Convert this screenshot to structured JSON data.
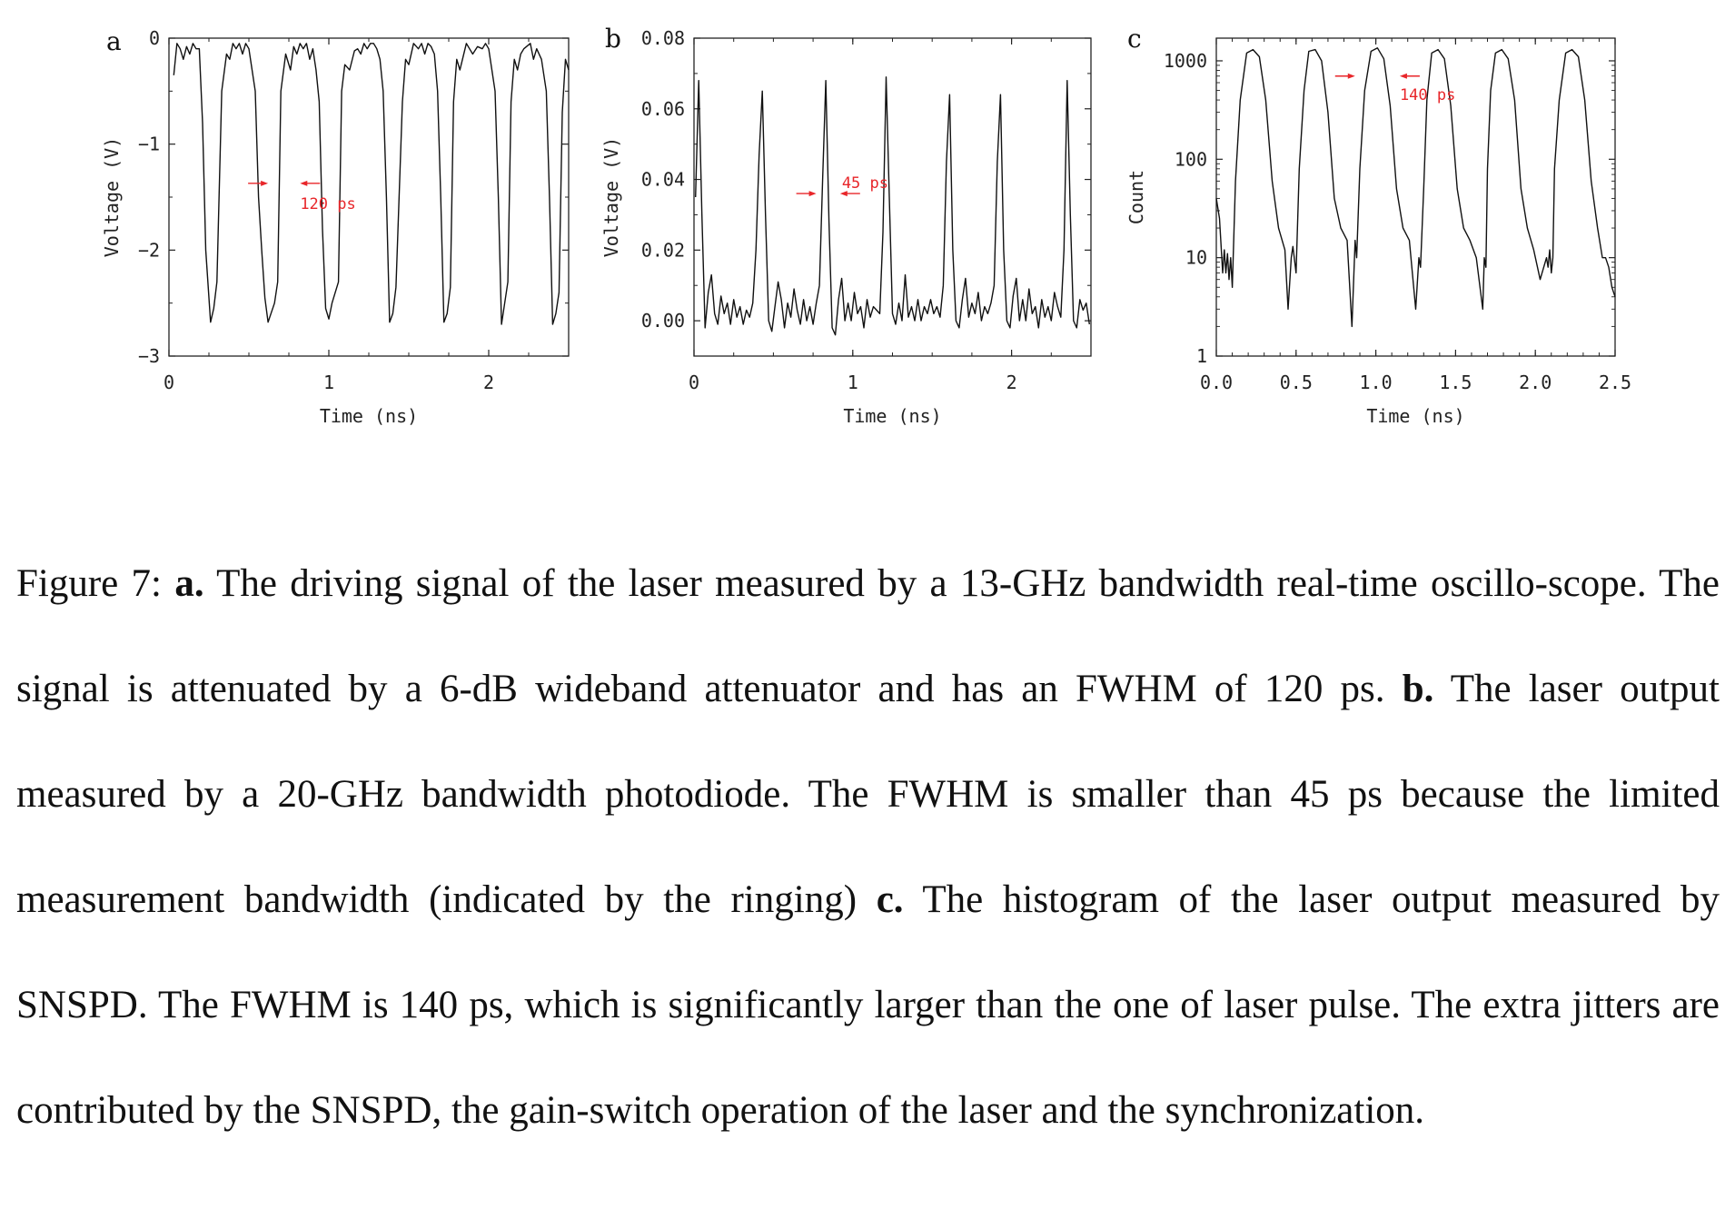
{
  "figure": {
    "panels": [
      {
        "letter": "a",
        "xlabel": "Time (ns)",
        "ylabel": "Voltage (V)",
        "annotation": "120 ps"
      },
      {
        "letter": "b",
        "xlabel": "Time (ns)",
        "ylabel": "Voltage (V)",
        "annotation": "45 ps"
      },
      {
        "letter": "c",
        "xlabel": "Time (ns)",
        "ylabel": "Count",
        "annotation": "140 ps"
      }
    ]
  },
  "chart_data": [
    {
      "type": "line",
      "panel": "a",
      "xlabel": "Time (ns)",
      "ylabel": "Voltage (V)",
      "xlim": [
        0,
        2.5
      ],
      "ylim": [
        -3,
        0
      ],
      "xticks": [
        0,
        1,
        2
      ],
      "xtick_labels": [
        "0",
        "1",
        "2"
      ],
      "yticks": [
        0,
        -1,
        -2,
        -3
      ],
      "ytick_labels": [
        "0",
        "−1",
        "−2",
        "−3"
      ],
      "annotation": {
        "text": "120 ps",
        "arrow_left_x": 0.62,
        "arrow_right_x": 0.82,
        "y": -1.37
      },
      "series": [
        {
          "x": [
            0.03,
            0.05,
            0.07,
            0.09,
            0.11,
            0.13,
            0.15,
            0.17,
            0.19,
            0.21,
            0.23,
            0.26,
            0.28,
            0.3,
            0.33,
            0.36,
            0.38,
            0.4,
            0.42,
            0.44,
            0.46,
            0.48,
            0.5,
            0.52,
            0.54,
            0.56,
            0.58,
            0.6,
            0.62,
            0.66,
            0.68,
            0.7,
            0.73,
            0.76,
            0.78,
            0.8,
            0.82,
            0.84,
            0.86,
            0.88,
            0.9,
            0.92,
            0.94,
            0.96,
            0.98,
            1.0,
            1.02,
            1.06,
            1.08,
            1.1,
            1.13,
            1.16,
            1.18,
            1.2,
            1.22,
            1.24,
            1.26,
            1.28,
            1.3,
            1.32,
            1.34,
            1.36,
            1.38,
            1.4,
            1.42,
            1.46,
            1.48,
            1.5,
            1.53,
            1.56,
            1.58,
            1.6,
            1.62,
            1.64,
            1.66,
            1.68,
            1.7,
            1.72,
            1.74,
            1.76,
            1.78,
            1.8,
            1.82,
            1.86,
            1.88,
            1.9,
            1.93,
            1.96,
            1.98,
            2.0,
            2.02,
            2.04,
            2.06,
            2.08,
            2.1,
            2.12,
            2.14,
            2.16,
            2.18,
            2.2,
            2.22,
            2.26,
            2.28,
            2.3,
            2.33,
            2.36,
            2.38,
            2.4,
            2.42,
            2.44,
            2.46,
            2.48,
            2.5
          ],
          "values": [
            -0.35,
            -0.05,
            -0.1,
            -0.2,
            -0.08,
            -0.15,
            -0.05,
            -0.1,
            -0.1,
            -0.8,
            -2.0,
            -2.68,
            -2.55,
            -2.3,
            -0.5,
            -0.15,
            -0.2,
            -0.05,
            -0.1,
            -0.05,
            -0.15,
            -0.05,
            -0.1,
            -0.3,
            -0.5,
            -1.5,
            -2.0,
            -2.45,
            -2.68,
            -2.5,
            -2.3,
            -0.5,
            -0.15,
            -0.3,
            -0.08,
            -0.15,
            -0.05,
            -0.1,
            -0.05,
            -0.2,
            -0.1,
            -0.3,
            -0.6,
            -1.8,
            -2.55,
            -2.65,
            -2.5,
            -2.3,
            -0.5,
            -0.25,
            -0.3,
            -0.12,
            -0.1,
            -0.15,
            -0.05,
            -0.1,
            -0.05,
            -0.05,
            -0.1,
            -0.2,
            -0.5,
            -1.5,
            -2.68,
            -2.6,
            -2.35,
            -0.6,
            -0.2,
            -0.25,
            -0.05,
            -0.1,
            -0.05,
            -0.15,
            -0.05,
            -0.08,
            -0.15,
            -0.5,
            -1.5,
            -2.68,
            -2.6,
            -2.35,
            -0.6,
            -0.2,
            -0.3,
            -0.05,
            -0.1,
            -0.15,
            -0.08,
            -0.1,
            -0.05,
            -0.1,
            -0.3,
            -0.5,
            -1.5,
            -2.7,
            -2.5,
            -2.3,
            -0.6,
            -0.2,
            -0.3,
            -0.15,
            -0.1,
            -0.05,
            -0.2,
            -0.1,
            -0.2,
            -0.5,
            -1.5,
            -2.7,
            -2.6,
            -2.4,
            -0.7,
            -0.2,
            -0.3
          ]
        }
      ]
    },
    {
      "type": "line",
      "panel": "b",
      "xlabel": "Time (ns)",
      "ylabel": "Voltage (V)",
      "xlim": [
        0,
        2.5
      ],
      "ylim": [
        -0.01,
        0.08
      ],
      "xticks": [
        0,
        1,
        2
      ],
      "xtick_labels": [
        "0",
        "1",
        "2"
      ],
      "yticks": [
        0.0,
        0.02,
        0.04,
        0.06,
        0.08
      ],
      "ytick_labels": [
        "0.00",
        "0.02",
        "0.04",
        "0.06",
        "0.08"
      ],
      "annotation": {
        "text": "45 ps",
        "arrow_left_x": 0.77,
        "arrow_right_x": 0.92,
        "y": 0.036
      },
      "series": [
        {
          "x": [
            0.01,
            0.03,
            0.05,
            0.07,
            0.09,
            0.11,
            0.13,
            0.15,
            0.17,
            0.19,
            0.21,
            0.23,
            0.25,
            0.27,
            0.29,
            0.31,
            0.33,
            0.35,
            0.37,
            0.39,
            0.41,
            0.43,
            0.45,
            0.47,
            0.49,
            0.51,
            0.53,
            0.55,
            0.57,
            0.59,
            0.61,
            0.63,
            0.65,
            0.67,
            0.69,
            0.71,
            0.73,
            0.75,
            0.77,
            0.79,
            0.81,
            0.83,
            0.85,
            0.87,
            0.89,
            0.91,
            0.93,
            0.95,
            0.97,
            0.99,
            1.01,
            1.03,
            1.05,
            1.07,
            1.09,
            1.11,
            1.13,
            1.15,
            1.17,
            1.19,
            1.21,
            1.23,
            1.25,
            1.27,
            1.29,
            1.31,
            1.33,
            1.35,
            1.37,
            1.39,
            1.41,
            1.43,
            1.45,
            1.47,
            1.49,
            1.51,
            1.53,
            1.55,
            1.57,
            1.59,
            1.61,
            1.63,
            1.65,
            1.67,
            1.69,
            1.71,
            1.73,
            1.75,
            1.77,
            1.79,
            1.81,
            1.83,
            1.85,
            1.87,
            1.89,
            1.91,
            1.93,
            1.95,
            1.97,
            1.99,
            2.01,
            2.03,
            2.05,
            2.07,
            2.09,
            2.11,
            2.13,
            2.15,
            2.17,
            2.19,
            2.21,
            2.23,
            2.25,
            2.27,
            2.29,
            2.31,
            2.33,
            2.35,
            2.37,
            2.39,
            2.41,
            2.43,
            2.45,
            2.47,
            2.49
          ],
          "values": [
            0.035,
            0.068,
            0.03,
            -0.002,
            0.008,
            0.013,
            0.002,
            -0.001,
            0.007,
            0.002,
            0.005,
            -0.001,
            0.006,
            0.001,
            0.004,
            -0.001,
            0.003,
            0.001,
            0.005,
            0.02,
            0.047,
            0.065,
            0.03,
            0.0,
            -0.003,
            0.004,
            0.011,
            0.006,
            -0.002,
            0.005,
            0.001,
            0.009,
            0.003,
            -0.001,
            0.006,
            0.0,
            0.004,
            -0.001,
            0.005,
            0.01,
            0.04,
            0.068,
            0.028,
            -0.002,
            -0.004,
            0.006,
            0.012,
            0.0,
            0.005,
            0.0,
            0.008,
            0.002,
            0.004,
            -0.002,
            0.006,
            0.001,
            0.004,
            0.003,
            0.002,
            0.025,
            0.069,
            0.035,
            0.002,
            -0.001,
            0.005,
            0.0,
            0.013,
            0.001,
            0.004,
            0.0,
            0.006,
            0.0,
            0.004,
            0.002,
            0.006,
            0.002,
            0.004,
            0.001,
            0.01,
            0.045,
            0.064,
            0.02,
            0.0,
            -0.002,
            0.006,
            0.012,
            0.001,
            0.005,
            0.002,
            0.008,
            0.0,
            0.004,
            0.002,
            0.005,
            0.01,
            0.045,
            0.064,
            0.02,
            0.0,
            -0.002,
            0.007,
            0.012,
            0.0,
            0.006,
            0.0,
            0.009,
            0.002,
            0.004,
            -0.002,
            0.006,
            0.001,
            0.004,
            0.0,
            0.008,
            0.004,
            0.001,
            0.02,
            0.068,
            0.03,
            0.0,
            -0.002,
            0.006,
            0.003,
            0.005,
            -0.001
          ]
        }
      ]
    },
    {
      "type": "line",
      "panel": "c",
      "xlabel": "Time (ns)",
      "ylabel": "Count",
      "yscale": "log",
      "xlim": [
        0,
        2.5
      ],
      "ylim": [
        1,
        1700
      ],
      "xticks": [
        0.0,
        0.5,
        1.0,
        1.5,
        2.0,
        2.5
      ],
      "xtick_labels": [
        "0.0",
        "0.5",
        "1.0",
        "1.5",
        "2.0",
        "2.5"
      ],
      "yticks": [
        1,
        10,
        100,
        1000
      ],
      "ytick_labels": [
        "1",
        "10",
        "100",
        "1000"
      ],
      "annotation": {
        "text": "140 ps",
        "arrow_left_x": 0.87,
        "arrow_right_x": 1.15,
        "y": 700
      },
      "series": [
        {
          "x": [
            0.0,
            0.02,
            0.04,
            0.05,
            0.06,
            0.07,
            0.08,
            0.09,
            0.1,
            0.12,
            0.15,
            0.19,
            0.23,
            0.27,
            0.31,
            0.35,
            0.39,
            0.43,
            0.45,
            0.47,
            0.48,
            0.5,
            0.52,
            0.55,
            0.58,
            0.62,
            0.66,
            0.7,
            0.74,
            0.78,
            0.82,
            0.85,
            0.87,
            0.88,
            0.9,
            0.93,
            0.97,
            1.01,
            1.05,
            1.09,
            1.13,
            1.17,
            1.21,
            1.25,
            1.27,
            1.28,
            1.3,
            1.32,
            1.35,
            1.39,
            1.43,
            1.47,
            1.51,
            1.55,
            1.59,
            1.63,
            1.67,
            1.68,
            1.69,
            1.7,
            1.72,
            1.75,
            1.79,
            1.83,
            1.87,
            1.91,
            1.95,
            1.99,
            2.03,
            2.07,
            2.08,
            2.09,
            2.1,
            2.11,
            2.12,
            2.15,
            2.19,
            2.23,
            2.27,
            2.31,
            2.35,
            2.39,
            2.42,
            2.44,
            2.46,
            2.48,
            2.5
          ],
          "values": [
            40,
            25,
            7,
            12,
            7,
            11,
            6,
            10,
            5,
            60,
            400,
            1200,
            1300,
            1100,
            400,
            60,
            20,
            12,
            3,
            10,
            13,
            7,
            80,
            500,
            1250,
            1300,
            1000,
            300,
            40,
            20,
            15,
            2,
            15,
            10,
            80,
            500,
            1250,
            1350,
            1050,
            350,
            50,
            20,
            15,
            3,
            10,
            8,
            50,
            400,
            1200,
            1300,
            1050,
            350,
            50,
            20,
            15,
            10,
            3,
            10,
            8,
            80,
            500,
            1200,
            1300,
            1050,
            400,
            50,
            20,
            12,
            6,
            10,
            8,
            12,
            7,
            10,
            80,
            400,
            1200,
            1300,
            1100,
            400,
            60,
            20,
            10,
            10,
            8,
            5,
            4
          ]
        }
      ]
    }
  ],
  "caption": {
    "prefix": "Figure 7: ",
    "a_label": "a.",
    "a_text": " The driving signal of the laser measured by a 13-GHz bandwidth real-time oscillo-scope. The signal is attenuated by a 6-dB wideband attenuator and has an FWHM of 120 ps. ",
    "b_label": "b.",
    "b_text": " The laser output measured by a 20-GHz bandwidth photodiode. The FWHM is smaller than 45 ps because the limited measurement bandwidth (indicated by the ringing) ",
    "c_label": "c.",
    "c_text": " The histogram of the laser output measured by SNSPD. The FWHM is 140 ps, which is significantly larger than the one of laser pulse. The extra jitters are contributed by the SNSPD, the gain-switch operation of the laser and the synchronization."
  }
}
